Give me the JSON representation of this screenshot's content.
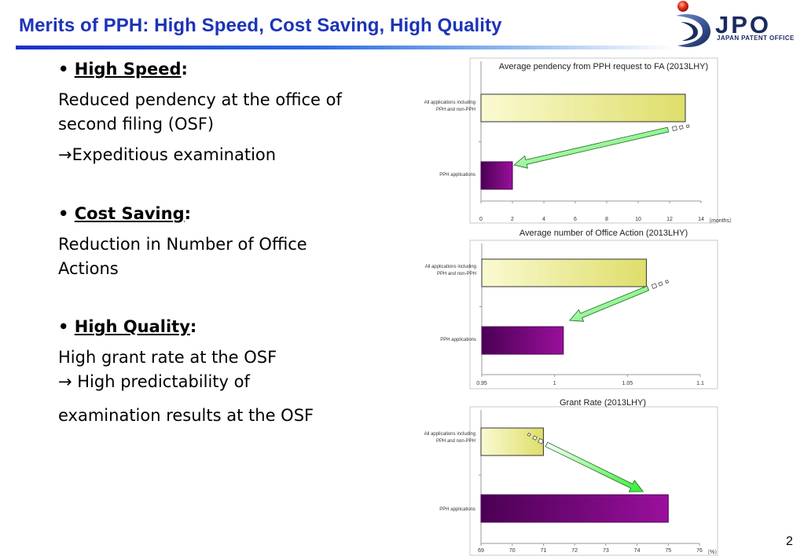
{
  "slide": {
    "title": "Merits of PPH: High Speed, Cost Saving, High Quality",
    "page_number": "2"
  },
  "logo": {
    "text": "JPO",
    "subtext": "JAPAN PATENT OFFICE"
  },
  "sections": [
    {
      "bullet": "•",
      "heading": "High Speed",
      "colon": ":",
      "lines": [
        "Reduced pendency at the office of",
        "second filing (OSF)",
        "→Expeditious examination"
      ]
    },
    {
      "bullet": "•",
      "heading": "Cost Saving",
      "colon": ":",
      "lines": [
        "Reduction in Number of Office",
        "Actions"
      ]
    },
    {
      "bullet": "•",
      "heading": "High Quality",
      "colon": ":",
      "lines": [
        "High grant rate at the OSF",
        "→ High predictability of",
        "examination results at the OSF"
      ]
    }
  ],
  "colors": {
    "title": "#1d33b8",
    "bar_yellow_light": "#fafad2",
    "bar_yellow_dark": "#dede6a",
    "bar_purple_dark": "#4a0054",
    "bar_purple_light": "#9a109c",
    "arrow_green": "#33ee33"
  },
  "chart_data": [
    {
      "type": "bar",
      "orientation": "horizontal",
      "title": "Average pendency from PPH request to FA (2013LHY)",
      "categories": [
        [
          "All applications including",
          "PPH and non-PPH"
        ],
        [
          "PPH applications"
        ]
      ],
      "values": [
        13,
        2
      ],
      "xlim": [
        0,
        14
      ],
      "xticks": [
        "0",
        "2",
        "4",
        "6",
        "8",
        "10",
        "12",
        "14"
      ],
      "unit": "（months）",
      "grid": false,
      "arrow": "from first bar toward second bar"
    },
    {
      "type": "bar",
      "orientation": "horizontal",
      "title": "Average number of Office Action (2013LHY)",
      "categories": [
        [
          "All applications including",
          "PPH and non-PPH"
        ],
        [
          "PPH applications"
        ]
      ],
      "values": [
        1.063,
        1.006
      ],
      "xlim": [
        0.95,
        1.1
      ],
      "xticks": [
        "0.95",
        "1",
        "1.05",
        "1.1"
      ],
      "unit": "",
      "grid": false,
      "arrow": "from first bar toward second bar"
    },
    {
      "type": "bar",
      "orientation": "horizontal",
      "title": "Grant Rate (2013LHY)",
      "categories": [
        [
          "All applications including",
          "PPH and non-PPH"
        ],
        [
          "PPH applications"
        ]
      ],
      "values": [
        71,
        75
      ],
      "xlim": [
        69,
        76
      ],
      "xticks": [
        "69",
        "70",
        "71",
        "72",
        "73",
        "74",
        "75",
        "76"
      ],
      "unit": "（%）",
      "grid": false,
      "arrow": "from first bar toward second bar"
    }
  ]
}
